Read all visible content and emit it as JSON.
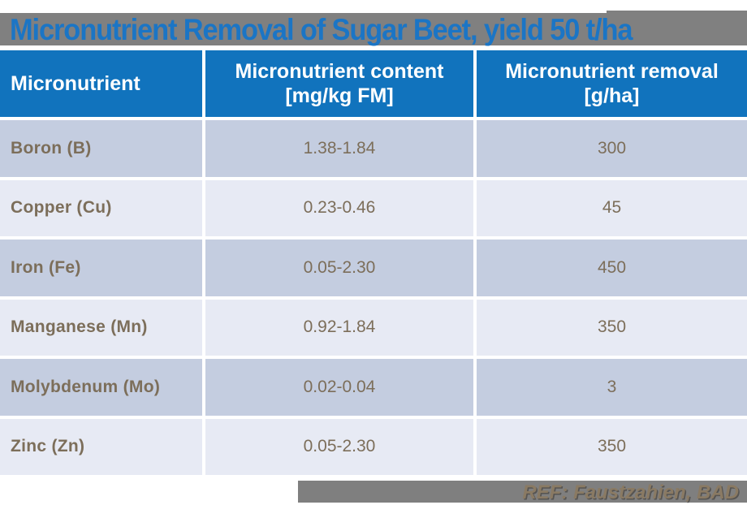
{
  "slide": {
    "title": "Micronutrient Removal of Sugar Beet, yield 50 t/ha"
  },
  "table": {
    "columns": [
      {
        "header": "Micronutrient"
      },
      {
        "header_line1": "Micronutrient content",
        "header_line2": "[mg/kg FM]"
      },
      {
        "header_line1": "Micronutrient removal",
        "header_line2": "[g/ha]"
      }
    ],
    "rows": [
      {
        "name": "Boron (B)",
        "content": "1.38-1.84",
        "removal": "300"
      },
      {
        "name": "Copper (Cu)",
        "content": "0.23-0.46",
        "removal": "45"
      },
      {
        "name": "Iron (Fe)",
        "content": "0.05-2.30",
        "removal": "450"
      },
      {
        "name": "Manganese (Mn)",
        "content": "0.92-1.84",
        "removal": "350"
      },
      {
        "name": "Molybdenum (Mo)",
        "content": "0.02-0.04",
        "removal": "3"
      },
      {
        "name": "Zinc (Zn)",
        "content": "0.05-2.30",
        "removal": "350"
      }
    ]
  },
  "footer": {
    "reference": "REF: Faustzahien, BAD"
  },
  "colors": {
    "title_bar_bg": "#808080",
    "title_text": "#1B75C5",
    "header_bg": "#1173BD",
    "header_text": "#FFFFFF",
    "row_odd_bg": "#C4CDE0",
    "row_even_bg": "#E7EAF4",
    "cell_text": "#7C6E5A",
    "footer_bar_bg": "#7F7F7F",
    "footer_text": "#8A7A63"
  }
}
